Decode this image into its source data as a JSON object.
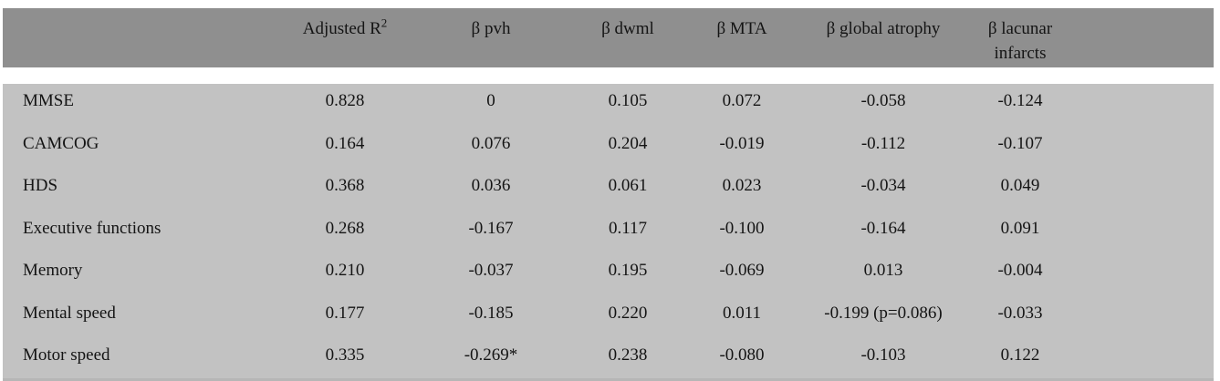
{
  "table": {
    "columns": [
      {
        "label": ""
      },
      {
        "label": "Adjusted R",
        "sup": "2"
      },
      {
        "label": "β pvh"
      },
      {
        "label": "β dwml"
      },
      {
        "label": "β MTA"
      },
      {
        "label": "β global atrophy"
      },
      {
        "label": "β lacunar infarcts"
      }
    ],
    "rows": [
      {
        "label": "MMSE",
        "values": [
          "0.828",
          "0",
          "0.105",
          "0.072",
          "-0.058",
          "-0.124"
        ]
      },
      {
        "label": "CAMCOG",
        "values": [
          "0.164",
          "0.076",
          "0.204",
          "-0.019",
          "-0.112",
          "-0.107"
        ]
      },
      {
        "label": "HDS",
        "values": [
          "0.368",
          "0.036",
          "0.061",
          "0.023",
          "-0.034",
          "0.049"
        ]
      },
      {
        "label": "Executive functions",
        "values": [
          "0.268",
          "-0.167",
          "0.117",
          "-0.100",
          "-0.164",
          "0.091"
        ]
      },
      {
        "label": "Memory",
        "values": [
          "0.210",
          "-0.037",
          "0.195",
          "-0.069",
          "0.013",
          "-0.004"
        ]
      },
      {
        "label": "Mental speed",
        "values": [
          "0.177",
          "-0.185",
          "0.220",
          "0.011",
          "-0.199 (p=0.086)",
          "-0.033"
        ]
      },
      {
        "label": "Motor speed",
        "values": [
          "0.335",
          "-0.269*",
          "0.238",
          "-0.080",
          "-0.103",
          "0.122"
        ]
      }
    ],
    "colors": {
      "header_bg": "#8f8f8f",
      "body_bg": "#c2c2c2",
      "separator": "#ffffff",
      "text": "#141414"
    }
  }
}
